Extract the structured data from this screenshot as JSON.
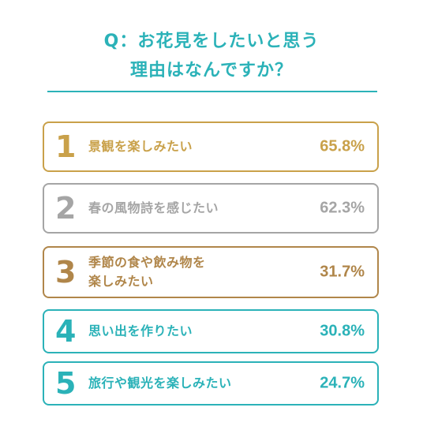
{
  "title_line1": "Q：お花見をしたいと思う",
  "title_line2": "理由はなんですか？",
  "chart_data": {
    "type": "table",
    "title": "Q：お花見をしたいと思う 理由はなんですか？",
    "rows": [
      {
        "rank": "1",
        "label": "景観を楽しみたい",
        "value": 65.8,
        "value_text": "65.8%",
        "color": "#c9a14a"
      },
      {
        "rank": "2",
        "label": "春の風物詩を感じたい",
        "value": 62.3,
        "value_text": "62.3%",
        "color": "#a5a5a5"
      },
      {
        "rank": "3",
        "label": "季節の食や飲み物を\n楽しみたい",
        "value": 31.7,
        "value_text": "31.7%",
        "color": "#b0864a"
      },
      {
        "rank": "4",
        "label": "思い出を作りたい",
        "value": 30.8,
        "value_text": "30.8%",
        "color": "#2bb2b8"
      },
      {
        "rank": "5",
        "label": "旅行や観光を楽しみたい",
        "value": 24.7,
        "value_text": "24.7%",
        "color": "#2bb2b8"
      }
    ]
  }
}
